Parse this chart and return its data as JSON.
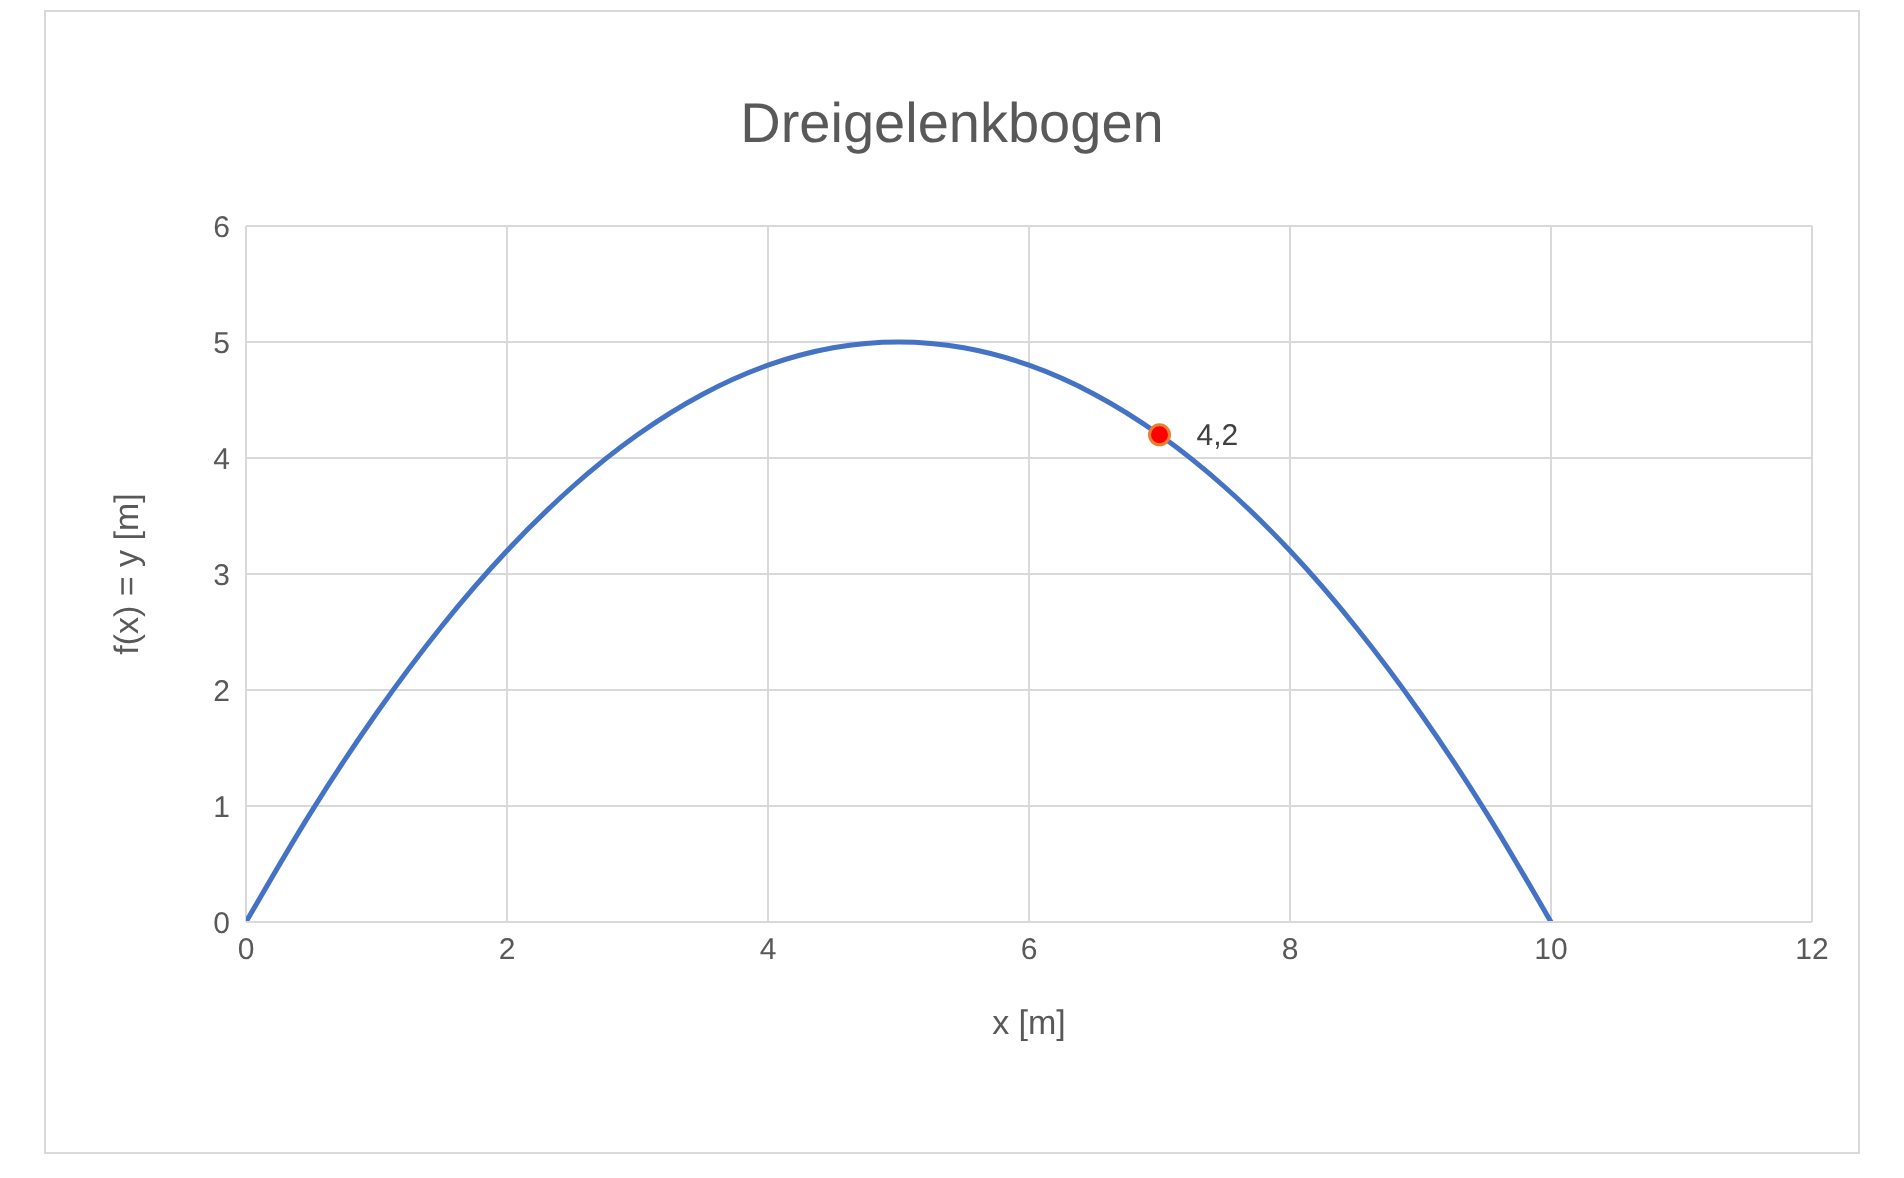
{
  "chart_data": {
    "type": "line",
    "title": "Dreigelenkbogen",
    "xlabel": "x [m]",
    "ylabel": "f(x) = y [m]",
    "xlim": [
      0,
      12
    ],
    "xticks": [
      0,
      2,
      4,
      6,
      8,
      10,
      12
    ],
    "ylim": [
      0,
      6
    ],
    "yticks": [
      0,
      1,
      2,
      3,
      4,
      5,
      6
    ],
    "grid": true,
    "legend": false,
    "series": [
      {
        "color": "#4472c4",
        "marker": "none",
        "x": [
          0,
          0.5,
          1,
          1.5,
          2,
          2.5,
          3,
          3.5,
          4,
          4.5,
          5,
          5.5,
          6,
          6.5,
          7,
          7.5,
          8,
          8.5,
          9,
          9.5,
          10
        ],
        "values": [
          0,
          0.95,
          1.8,
          2.55,
          3.2,
          3.75,
          4.2,
          4.55,
          4.8,
          4.95,
          5,
          4.95,
          4.8,
          4.55,
          4.2,
          3.75,
          3.2,
          2.55,
          1.8,
          0.95,
          0
        ]
      },
      {
        "type": "scatter",
        "color": "#ff0000",
        "marker": "circle",
        "x": [
          7
        ],
        "values": [
          4.2
        ],
        "value_labels": [
          "4,2"
        ]
      }
    ]
  }
}
